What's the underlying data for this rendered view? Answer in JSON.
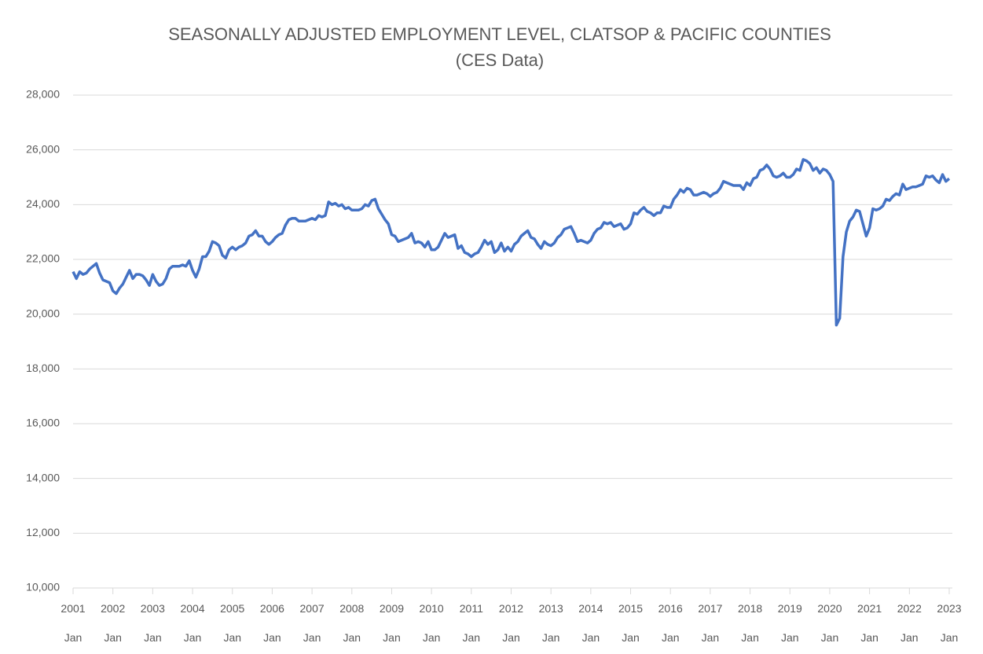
{
  "chart_data": {
    "type": "line",
    "title": "SEASONALLY ADJUSTED EMPLOYMENT LEVEL, CLATSOP & PACIFIC COUNTIES",
    "subtitle": "(CES Data)",
    "categories": [
      "2001 Jan",
      null,
      null,
      null,
      null,
      null,
      null,
      null,
      null,
      null,
      null,
      null,
      "2002 Jan",
      null,
      null,
      null,
      null,
      null,
      null,
      null,
      null,
      null,
      null,
      null,
      "2003 Jan",
      null,
      null,
      null,
      null,
      null,
      null,
      null,
      null,
      null,
      null,
      null,
      "2004 Jan",
      null,
      null,
      null,
      null,
      null,
      null,
      null,
      null,
      null,
      null,
      null,
      "2005 Jan",
      null,
      null,
      null,
      null,
      null,
      null,
      null,
      null,
      null,
      null,
      null,
      "2006 Jan",
      null,
      null,
      null,
      null,
      null,
      null,
      null,
      null,
      null,
      null,
      null,
      "2007 Jan",
      null,
      null,
      null,
      null,
      null,
      null,
      null,
      null,
      null,
      null,
      null,
      "2008 Jan",
      null,
      null,
      null,
      null,
      null,
      null,
      null,
      null,
      null,
      null,
      null,
      "2009 Jan",
      null,
      null,
      null,
      null,
      null,
      null,
      null,
      null,
      null,
      null,
      null,
      "2010 Jan",
      null,
      null,
      null,
      null,
      null,
      null,
      null,
      null,
      null,
      null,
      null,
      "2011 Jan",
      null,
      null,
      null,
      null,
      null,
      null,
      null,
      null,
      null,
      null,
      null,
      "2012 Jan",
      null,
      null,
      null,
      null,
      null,
      null,
      null,
      null,
      null,
      null,
      null,
      "2013 Jan",
      null,
      null,
      null,
      null,
      null,
      null,
      null,
      null,
      null,
      null,
      null,
      "2014 Jan",
      null,
      null,
      null,
      null,
      null,
      null,
      null,
      null,
      null,
      null,
      null,
      "2015 Jan",
      null,
      null,
      null,
      null,
      null,
      null,
      null,
      null,
      null,
      null,
      null,
      "2016 Jan",
      null,
      null,
      null,
      null,
      null,
      null,
      null,
      null,
      null,
      null,
      null,
      "2017 Jan",
      null,
      null,
      null,
      null,
      null,
      null,
      null,
      null,
      null,
      null,
      null,
      "2018 Jan",
      null,
      null,
      null,
      null,
      null,
      null,
      null,
      null,
      null,
      null,
      null,
      "2019 Jan",
      null,
      null,
      null,
      null,
      null,
      null,
      null,
      null,
      null,
      null,
      null,
      "2020 Jan",
      null,
      null,
      null,
      null,
      null,
      null,
      null,
      null,
      null,
      null,
      null,
      "2021 Jan",
      null,
      null,
      null,
      null,
      null,
      null,
      null,
      null,
      null,
      null,
      null,
      "2022 Jan",
      null,
      null,
      null,
      null,
      null,
      null,
      null,
      null,
      null,
      null,
      null,
      "2023 Jan"
    ],
    "series": [
      {
        "color": "#4472c4",
        "values": [
          21550,
          21300,
          21550,
          21450,
          21500,
          21650,
          21750,
          21850,
          21500,
          21250,
          21200,
          21150,
          20850,
          20750,
          20950,
          21100,
          21350,
          21600,
          21300,
          21450,
          21450,
          21400,
          21250,
          21050,
          21450,
          21200,
          21050,
          21100,
          21300,
          21650,
          21750,
          21750,
          21750,
          21800,
          21750,
          21950,
          21600,
          21350,
          21650,
          22100,
          22100,
          22300,
          22650,
          22600,
          22500,
          22150,
          22050,
          22350,
          22450,
          22350,
          22450,
          22500,
          22600,
          22850,
          22900,
          23050,
          22850,
          22850,
          22650,
          22550,
          22650,
          22800,
          22900,
          22950,
          23250,
          23450,
          23500,
          23500,
          23400,
          23400,
          23400,
          23450,
          23500,
          23450,
          23600,
          23550,
          23600,
          24100,
          24000,
          24050,
          23950,
          24000,
          23850,
          23900,
          23800,
          23800,
          23800,
          23850,
          24000,
          23950,
          24150,
          24200,
          23850,
          23650,
          23450,
          23300,
          22900,
          22850,
          22650,
          22700,
          22750,
          22800,
          22950,
          22600,
          22650,
          22600,
          22450,
          22650,
          22350,
          22350,
          22450,
          22700,
          22950,
          22800,
          22850,
          22900,
          22400,
          22500,
          22250,
          22200,
          22100,
          22200,
          22250,
          22450,
          22700,
          22550,
          22650,
          22250,
          22350,
          22600,
          22300,
          22450,
          22300,
          22550,
          22650,
          22850,
          22950,
          23050,
          22800,
          22750,
          22550,
          22400,
          22650,
          22550,
          22500,
          22600,
          22800,
          22900,
          23100,
          23150,
          23200,
          22950,
          22650,
          22700,
          22650,
          22600,
          22700,
          22950,
          23100,
          23150,
          23350,
          23300,
          23350,
          23200,
          23250,
          23300,
          23100,
          23150,
          23300,
          23700,
          23650,
          23800,
          23900,
          23750,
          23700,
          23600,
          23700,
          23700,
          23950,
          23900,
          23900,
          24200,
          24350,
          24550,
          24450,
          24600,
          24550,
          24350,
          24350,
          24400,
          24450,
          24400,
          24300,
          24400,
          24450,
          24600,
          24850,
          24800,
          24750,
          24700,
          24700,
          24700,
          24550,
          24800,
          24700,
          24950,
          25000,
          25250,
          25300,
          25450,
          25300,
          25050,
          25000,
          25050,
          25150,
          25000,
          25000,
          25100,
          25300,
          25250,
          25650,
          25600,
          25500,
          25250,
          25350,
          25150,
          25300,
          25250,
          25100,
          24850,
          19600,
          19850,
          22100,
          23000,
          23400,
          23550,
          23800,
          23750,
          23300,
          22850,
          23150,
          23850,
          23800,
          23850,
          23950,
          24200,
          24150,
          24300,
          24400,
          24350,
          24750,
          24550,
          24600,
          24650,
          24650,
          24700,
          24750,
          25050,
          25000,
          25050,
          24900,
          24800,
          25100,
          24850,
          24950
        ]
      }
    ],
    "ylim": [
      10000,
      28000
    ],
    "yticks": [
      {
        "value": 10000,
        "label": "10,000"
      },
      {
        "value": 12000,
        "label": "12,000"
      },
      {
        "value": 14000,
        "label": "14,000"
      },
      {
        "value": 16000,
        "label": "16,000"
      },
      {
        "value": 18000,
        "label": "18,000"
      },
      {
        "value": 20000,
        "label": "20,000"
      },
      {
        "value": 22000,
        "label": "22,000"
      },
      {
        "value": 24000,
        "label": "24,000"
      },
      {
        "value": 26000,
        "label": "26,000"
      },
      {
        "value": 28000,
        "label": "28,000"
      }
    ],
    "grid": true
  }
}
